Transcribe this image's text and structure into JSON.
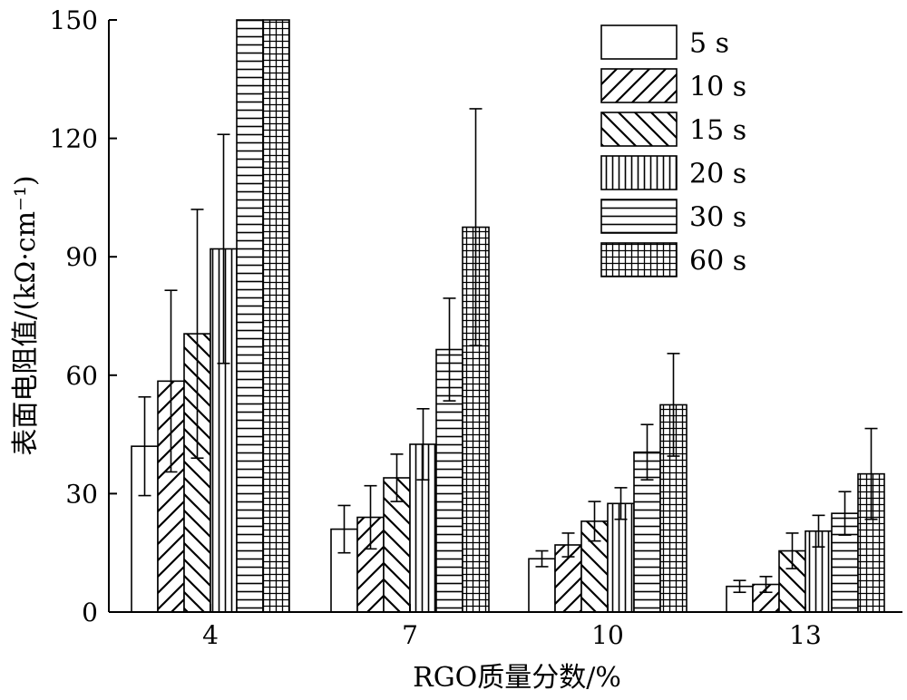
{
  "chart_data": {
    "type": "bar",
    "title": "",
    "xlabel": "RGO质量分数/%",
    "ylabel": "表面电阻值/(kΩ·cm⁻¹)",
    "ylim": [
      0,
      150
    ],
    "yticks": [
      0,
      30,
      60,
      90,
      120,
      150
    ],
    "ytick_labels": [
      "0",
      "30",
      "60",
      "90",
      "120",
      "150"
    ],
    "categories": [
      "4",
      "7",
      "10",
      "13"
    ],
    "series": [
      {
        "name": "5 s",
        "pattern": "none",
        "values": [
          42,
          21,
          13.5,
          6.5
        ],
        "errors": [
          12.5,
          6,
          2,
          1.5
        ]
      },
      {
        "name": "10 s",
        "pattern": "diag-right",
        "values": [
          58.5,
          24,
          17,
          7
        ],
        "errors": [
          23,
          8,
          3,
          2
        ]
      },
      {
        "name": "15 s",
        "pattern": "diag-left",
        "values": [
          70.5,
          34,
          23,
          15.5
        ],
        "errors": [
          31.5,
          6,
          5,
          4.5
        ]
      },
      {
        "name": "20 s",
        "pattern": "vertical",
        "values": [
          92,
          42.5,
          27.5,
          20.5
        ],
        "errors": [
          29,
          9,
          4,
          4
        ]
      },
      {
        "name": "30 s",
        "pattern": "horizontal",
        "values": [
          150,
          66.5,
          40.5,
          25
        ],
        "errors": [
          0,
          13,
          7,
          5.5
        ]
      },
      {
        "name": "60 s",
        "pattern": "grid",
        "values": [
          150,
          97.5,
          52.5,
          35
        ],
        "errors": [
          0,
          30,
          13,
          11.5
        ]
      }
    ],
    "legend": {
      "position": "top-right"
    },
    "grid": false
  }
}
